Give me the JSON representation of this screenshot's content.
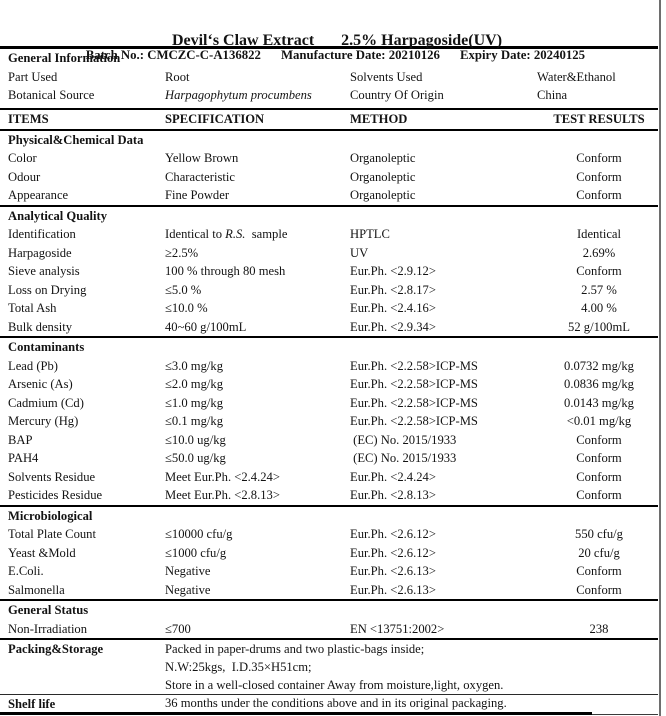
{
  "colors": {
    "ink": "#131313",
    "rule": "#000000",
    "scan_edge": "#6e6e6e"
  },
  "header": {
    "title_product": "Devil‘s Claw Extract",
    "title_assay": "2.5% Harpagoside(UV)",
    "batch": "Batch No.: CMCZC-C-A136822",
    "manufacture_date": "Manufacture Date: 20210126",
    "expiry_date": "Expiry Date: 20240125"
  },
  "general_info": {
    "title": "General Information",
    "rows": [
      {
        "label1": "Part Used",
        "value1": "Root",
        "label2": "Solvents Used",
        "value2": "Water&Ethanol"
      },
      {
        "label1": "Botanical Source",
        "value1": {
          "text": "Harpagophytum procumbens",
          "italic": true
        },
        "label2": "Country Of Origin",
        "value2": "China"
      }
    ]
  },
  "table": {
    "columns": [
      "ITEMS",
      "SPECIFICATION",
      "METHOD",
      "TEST RESULTS"
    ],
    "sections": [
      {
        "title": "Physical&Chemical Data",
        "rows": [
          [
            "Color",
            "Yellow Brown",
            "Organoleptic",
            "Conform"
          ],
          [
            "Odour",
            "Characteristic",
            "Organoleptic",
            "Conform"
          ],
          [
            "Appearance",
            "Fine Powder",
            "Organoleptic",
            "Conform"
          ]
        ]
      },
      {
        "title": "Analytical Quality",
        "rows": [
          [
            "Identification",
            {
              "parts": [
                {
                  "text": "Identical to "
                },
                {
                  "text": "R.S.",
                  "italic": true
                },
                {
                  "text": "  sample"
                }
              ]
            },
            "HPTLC",
            "Identical"
          ],
          [
            "Harpagoside",
            "≥2.5%",
            "UV",
            "2.69%"
          ],
          [
            "Sieve analysis",
            "100 % through 80 mesh",
            "Eur.Ph. <2.9.12>",
            "Conform"
          ],
          [
            "Loss on Drying",
            "≤5.0 %",
            "Eur.Ph. <2.8.17>",
            "2.57 %"
          ],
          [
            "Total Ash",
            "≤10.0 %",
            "Eur.Ph. <2.4.16>",
            "4.00 %"
          ],
          [
            "Bulk density",
            "40~60 g/100mL",
            "Eur.Ph. <2.9.34>",
            "52 g/100mL"
          ]
        ]
      },
      {
        "title": "Contaminants",
        "rows": [
          [
            "Lead (Pb)",
            "≤3.0 mg/kg",
            "Eur.Ph. <2.2.58>ICP-MS",
            "0.0732 mg/kg"
          ],
          [
            "Arsenic (As)",
            "≤2.0 mg/kg",
            "Eur.Ph. <2.2.58>ICP-MS",
            "0.0836 mg/kg"
          ],
          [
            "Cadmium (Cd)",
            "≤1.0 mg/kg",
            "Eur.Ph. <2.2.58>ICP-MS",
            "0.0143 mg/kg"
          ],
          [
            "Mercury (Hg)",
            "≤0.1 mg/kg",
            "Eur.Ph. <2.2.58>ICP-MS",
            "<0.01 mg/kg"
          ],
          [
            "BAP",
            "≤10.0 ug/kg",
            " (EC) No. 2015/1933",
            "Conform"
          ],
          [
            "PAH4",
            "≤50.0 ug/kg",
            " (EC) No. 2015/1933",
            "Conform"
          ],
          [
            "Solvents Residue",
            "Meet Eur.Ph. <2.4.24>",
            "Eur.Ph. <2.4.24>",
            "Conform"
          ],
          [
            "Pesticides Residue",
            "Meet Eur.Ph. <2.8.13>",
            "Eur.Ph. <2.8.13>",
            "Conform"
          ]
        ]
      },
      {
        "title": "Microbiological",
        "rows": [
          [
            "Total Plate Count",
            "≤10000 cfu/g",
            "Eur.Ph. <2.6.12>",
            "550 cfu/g"
          ],
          [
            "Yeast &Mold",
            "≤1000 cfu/g",
            "Eur.Ph. <2.6.12>",
            "20 cfu/g"
          ],
          [
            "E.Coli.",
            "Negative",
            "Eur.Ph. <2.6.13>",
            "Conform"
          ],
          [
            "Salmonella",
            "Negative",
            "Eur.Ph. <2.6.13>",
            "Conform"
          ]
        ]
      },
      {
        "title": "General Status",
        "rows": [
          [
            "Non-Irradiation",
            "≤700",
            "EN <13751:2002>",
            "238"
          ]
        ]
      }
    ]
  },
  "packing_storage": {
    "label": "Packing&Storage",
    "lines": [
      "Packed in paper-drums and two plastic-bags inside;",
      "N.W:25kgs,  I.D.35×H51cm;",
      "Store in a well-closed container Away from moisture,light, oxygen."
    ]
  },
  "shelf_life": {
    "label": "Shelf life",
    "text": "36 months under the conditions above and in its original packaging."
  }
}
